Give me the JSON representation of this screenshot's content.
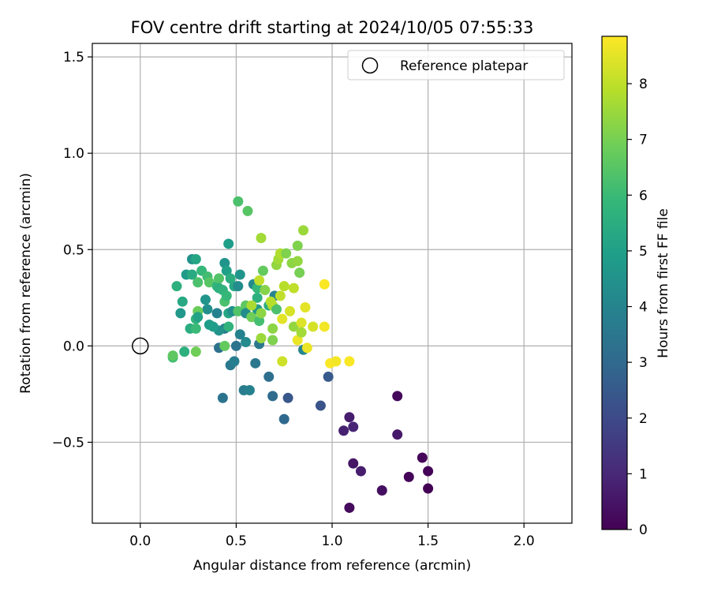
{
  "chart_data": {
    "type": "scatter",
    "title": "FOV centre drift starting at 2024/10/05 07:55:33",
    "xlabel": "Angular distance from reference (arcmin)",
    "ylabel": "Rotation from reference (arcmin)",
    "xlim": [
      -0.25,
      2.25
    ],
    "ylim": [
      -0.92,
      1.57
    ],
    "xticks": [
      0.0,
      0.5,
      1.0,
      1.5,
      2.0
    ],
    "xtick_labels": [
      "0.0",
      "0.5",
      "1.0",
      "1.5",
      "2.0"
    ],
    "yticks": [
      -0.5,
      0.0,
      0.5,
      1.0,
      1.5
    ],
    "ytick_labels": [
      "−0.5",
      "0.0",
      "0.5",
      "1.0",
      "1.5"
    ],
    "grid": true,
    "legend": {
      "location": "top-right",
      "entries": [
        {
          "label": "Reference platepar",
          "marker": "open-circle",
          "x": 0.0,
          "y": 0.0
        }
      ]
    },
    "colorbar": {
      "label": "Hours from first FF file",
      "colormap": "viridis",
      "range": [
        0,
        8.85
      ],
      "ticks": [
        0,
        1,
        2,
        3,
        4,
        5,
        6,
        7,
        8
      ],
      "tick_labels": [
        "0",
        "1",
        "2",
        "3",
        "4",
        "5",
        "6",
        "7",
        "8"
      ],
      "stops": [
        "#440154",
        "#482878",
        "#3e4989",
        "#31688e",
        "#26828e",
        "#1f9e89",
        "#35b779",
        "#6ece58",
        "#b5de2b",
        "#fde725"
      ]
    },
    "points": [
      [
        1.09,
        -0.84,
        0.25
      ],
      [
        1.26,
        -0.75,
        0.35
      ],
      [
        1.5,
        -0.74,
        0.0
      ],
      [
        1.4,
        -0.68,
        0.1
      ],
      [
        1.5,
        -0.65,
        0.05
      ],
      [
        1.15,
        -0.65,
        0.7
      ],
      [
        1.11,
        -0.61,
        0.5
      ],
      [
        1.47,
        -0.58,
        0.15
      ],
      [
        1.34,
        -0.46,
        0.6
      ],
      [
        1.06,
        -0.44,
        0.8
      ],
      [
        1.11,
        -0.42,
        0.9
      ],
      [
        1.09,
        -0.37,
        0.7
      ],
      [
        1.34,
        -0.26,
        0.2
      ],
      [
        0.94,
        -0.31,
        2.3
      ],
      [
        0.98,
        -0.16,
        2.5
      ],
      [
        0.75,
        -0.38,
        3.0
      ],
      [
        0.69,
        -0.26,
        3.1
      ],
      [
        0.77,
        -0.27,
        2.4
      ],
      [
        0.67,
        -0.16,
        3.2
      ],
      [
        0.43,
        -0.27,
        3.4
      ],
      [
        0.54,
        -0.23,
        3.7
      ],
      [
        0.57,
        -0.23,
        3.9
      ],
      [
        0.47,
        -0.1,
        3.6
      ],
      [
        0.6,
        -0.09,
        3.5
      ],
      [
        0.49,
        -0.08,
        3.8
      ],
      [
        0.41,
        -0.01,
        3.3
      ],
      [
        0.5,
        0.0,
        3.4
      ],
      [
        0.62,
        0.01,
        3.6
      ],
      [
        0.55,
        0.02,
        4.2
      ],
      [
        0.52,
        0.06,
        3.9
      ],
      [
        0.44,
        0.09,
        3.7
      ],
      [
        0.41,
        0.08,
        4.5
      ],
      [
        0.4,
        0.17,
        3.9
      ],
      [
        0.38,
        0.1,
        4.9
      ],
      [
        0.35,
        0.19,
        4.4
      ],
      [
        0.34,
        0.24,
        4.6
      ],
      [
        0.29,
        0.14,
        5.8
      ],
      [
        0.26,
        0.09,
        5.5
      ],
      [
        0.29,
        0.09,
        6.0
      ],
      [
        0.22,
        0.23,
        5.3
      ],
      [
        0.19,
        0.31,
        5.6
      ],
      [
        0.24,
        0.37,
        4.8
      ],
      [
        0.27,
        0.45,
        4.5
      ],
      [
        0.29,
        0.45,
        5.2
      ],
      [
        0.27,
        0.37,
        5.4
      ],
      [
        0.3,
        0.33,
        6.3
      ],
      [
        0.32,
        0.39,
        5.9
      ],
      [
        0.35,
        0.36,
        6.1
      ],
      [
        0.36,
        0.33,
        6.5
      ],
      [
        0.4,
        0.31,
        5.8
      ],
      [
        0.41,
        0.35,
        6.4
      ],
      [
        0.41,
        0.3,
        5.6
      ],
      [
        0.43,
        0.29,
        5.7
      ],
      [
        0.44,
        0.43,
        4.6
      ],
      [
        0.45,
        0.39,
        5.0
      ],
      [
        0.46,
        0.53,
        4.9
      ],
      [
        0.47,
        0.35,
        5.5
      ],
      [
        0.44,
        0.23,
        6.3
      ],
      [
        0.45,
        0.26,
        5.9
      ],
      [
        0.46,
        0.17,
        5.2
      ],
      [
        0.46,
        0.1,
        5.7
      ],
      [
        0.44,
        0.0,
        6.7
      ],
      [
        0.36,
        0.11,
        4.9
      ],
      [
        0.3,
        0.18,
        6.8
      ],
      [
        0.3,
        0.15,
        5.1
      ],
      [
        0.29,
        -0.03,
        6.9
      ],
      [
        0.23,
        -0.03,
        5.6
      ],
      [
        0.17,
        -0.06,
        6.1
      ],
      [
        0.17,
        -0.05,
        6.6
      ],
      [
        0.21,
        0.17,
        4.7
      ],
      [
        0.49,
        0.31,
        5.3
      ],
      [
        0.51,
        0.31,
        4.3
      ],
      [
        0.52,
        0.37,
        4.6
      ],
      [
        0.48,
        0.18,
        4.4
      ],
      [
        0.51,
        0.18,
        6.4
      ],
      [
        0.55,
        0.21,
        6.6
      ],
      [
        0.55,
        0.17,
        4.3
      ],
      [
        0.58,
        0.15,
        6.9
      ],
      [
        0.59,
        0.32,
        4.2
      ],
      [
        0.61,
        0.19,
        4.7
      ],
      [
        0.61,
        0.25,
        5.6
      ],
      [
        0.61,
        0.3,
        5.9
      ],
      [
        0.62,
        0.13,
        6.2
      ],
      [
        0.63,
        0.04,
        7.5
      ],
      [
        0.63,
        0.17,
        7.3
      ],
      [
        0.64,
        0.39,
        6.7
      ],
      [
        0.67,
        0.21,
        5.5
      ],
      [
        0.69,
        0.21,
        7.8
      ],
      [
        0.69,
        0.09,
        7.3
      ],
      [
        0.69,
        0.03,
        7.1
      ],
      [
        0.7,
        0.26,
        4.0
      ],
      [
        0.71,
        0.19,
        6.3
      ],
      [
        0.71,
        0.42,
        7.4
      ],
      [
        0.72,
        0.45,
        7.6
      ],
      [
        0.73,
        0.48,
        7.8
      ],
      [
        0.73,
        0.26,
        8.0
      ],
      [
        0.74,
        -0.08,
        8.2
      ],
      [
        0.74,
        0.14,
        8.5
      ],
      [
        0.75,
        0.31,
        7.9
      ],
      [
        0.76,
        0.48,
        7.1
      ],
      [
        0.78,
        0.18,
        8.3
      ],
      [
        0.79,
        0.43,
        7.3
      ],
      [
        0.8,
        0.3,
        8.0
      ],
      [
        0.8,
        0.1,
        7.4
      ],
      [
        0.82,
        0.03,
        8.6
      ],
      [
        0.82,
        0.52,
        7.1
      ],
      [
        0.82,
        0.44,
        7.4
      ],
      [
        0.83,
        0.38,
        7.0
      ],
      [
        0.84,
        0.12,
        8.4
      ],
      [
        0.84,
        0.07,
        7.6
      ],
      [
        0.85,
        0.6,
        7.5
      ],
      [
        0.85,
        -0.02,
        4.0
      ],
      [
        0.86,
        0.2,
        8.5
      ],
      [
        0.87,
        -0.01,
        8.6
      ],
      [
        0.9,
        0.1,
        8.3
      ],
      [
        0.96,
        0.32,
        8.8
      ],
      [
        0.96,
        0.1,
        8.7
      ],
      [
        0.99,
        -0.09,
        8.8
      ],
      [
        1.02,
        -0.08,
        8.7
      ],
      [
        1.09,
        -0.08,
        8.8
      ],
      [
        0.51,
        0.75,
        6.3
      ],
      [
        0.56,
        0.7,
        6.5
      ],
      [
        0.63,
        0.56,
        7.6
      ],
      [
        0.62,
        0.34,
        8.0
      ],
      [
        0.65,
        0.29,
        7.2
      ],
      [
        0.68,
        0.23,
        7.9
      ],
      [
        0.58,
        0.21,
        7.7
      ]
    ]
  }
}
